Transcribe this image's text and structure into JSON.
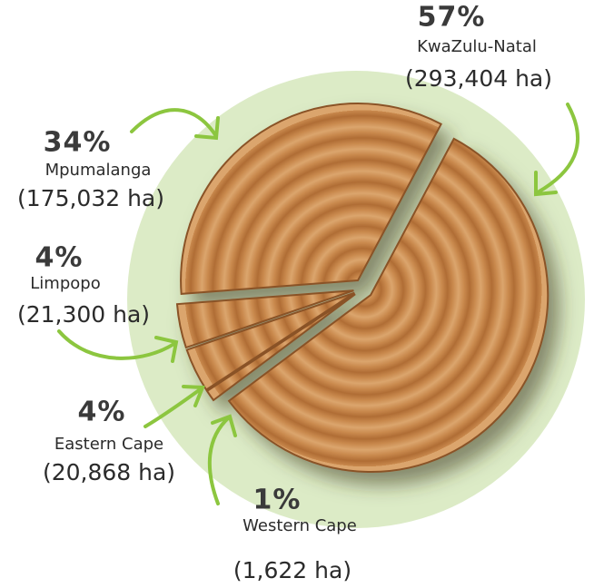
{
  "chart_data": {
    "type": "pie",
    "categories": [
      "KwaZulu-Natal",
      "Western Cape",
      "Eastern Cape",
      "Limpopo",
      "Mpumalanga"
    ],
    "values": [
      57,
      1,
      4,
      4,
      34
    ],
    "value_labels": [
      "57%",
      "1%",
      "4%",
      "4%",
      "34%"
    ],
    "area_labels": [
      "(293,404 ha)",
      "(1,622 ha)",
      "(20,868 ha)",
      "(21,300 ha)",
      "(175,032 ha)"
    ],
    "color": "#c9894d"
  }
}
